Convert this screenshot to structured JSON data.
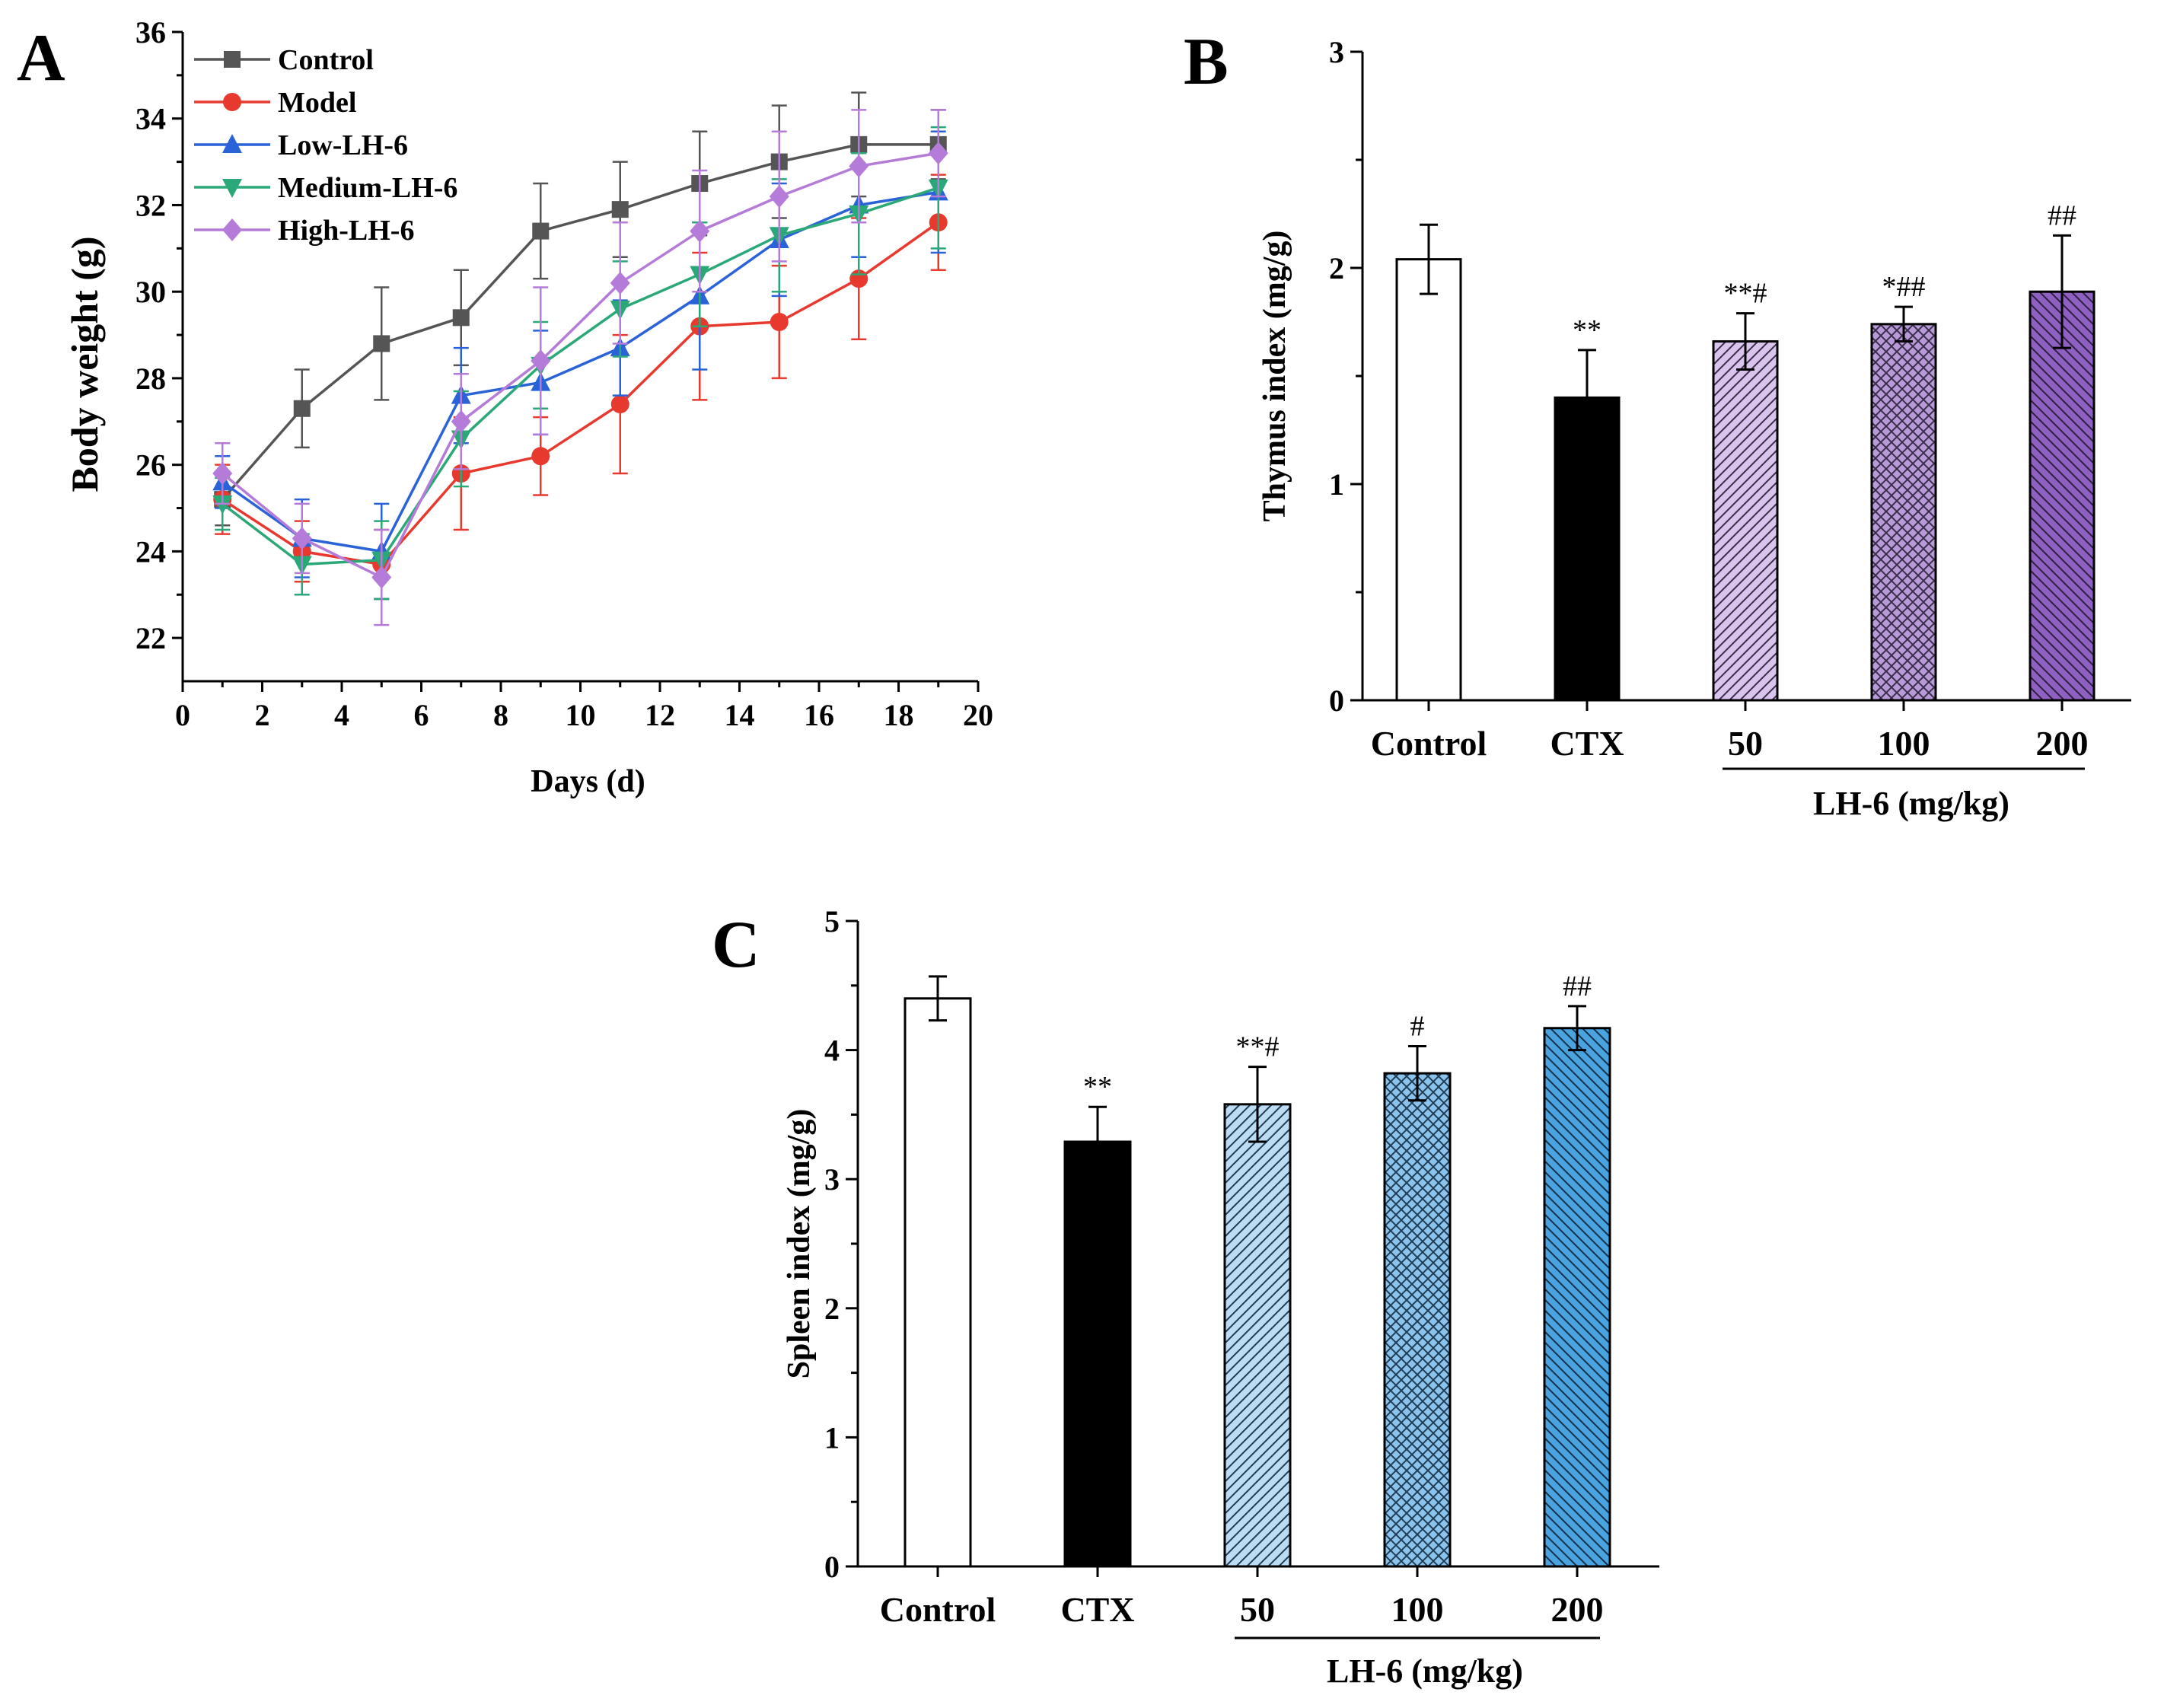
{
  "chart_data": [
    {
      "panel": "A",
      "type": "line",
      "xlabel": "Days (d)",
      "ylabel": "Body weight (g)",
      "xlim": [
        0,
        20
      ],
      "ylim": [
        21,
        36
      ],
      "xticks": [
        "0",
        "2",
        "4",
        "6",
        "8",
        "10",
        "12",
        "14",
        "16",
        "18",
        "20"
      ],
      "yticks": [
        "22",
        "24",
        "26",
        "28",
        "30",
        "32",
        "34",
        "36"
      ],
      "legend_position": "top-left",
      "x": [
        1,
        3,
        5,
        7,
        9,
        11,
        13,
        15,
        17,
        19
      ],
      "series": [
        {
          "name": "Control",
          "color": "#555555",
          "marker": "square",
          "values": [
            25.2,
            27.3,
            28.8,
            29.4,
            31.4,
            31.9,
            32.5,
            33.0,
            33.4,
            33.4
          ],
          "errors": [
            0.6,
            0.9,
            1.3,
            1.1,
            1.1,
            1.1,
            1.2,
            1.3,
            1.2,
            0.8
          ]
        },
        {
          "name": "Model",
          "color": "#e8392f",
          "marker": "circle",
          "values": [
            25.2,
            24.0,
            23.7,
            25.8,
            26.2,
            27.4,
            29.2,
            29.3,
            30.3,
            31.6
          ],
          "errors": [
            0.8,
            0.7,
            0.8,
            1.3,
            0.9,
            1.6,
            1.7,
            1.3,
            1.4,
            1.1
          ]
        },
        {
          "name": "Low-LH-6",
          "color": "#2a62d8",
          "marker": "triangle-up",
          "values": [
            25.6,
            24.3,
            24.0,
            27.6,
            27.9,
            28.7,
            29.9,
            31.2,
            32.0,
            32.3
          ],
          "errors": [
            0.6,
            0.9,
            1.1,
            1.1,
            1.2,
            1.1,
            1.7,
            1.3,
            1.2,
            1.4
          ]
        },
        {
          "name": "Medium-LH-6",
          "color": "#2aa877",
          "marker": "triangle-down",
          "values": [
            25.1,
            23.7,
            23.8,
            26.6,
            28.3,
            29.6,
            30.4,
            31.3,
            31.8,
            32.4
          ],
          "errors": [
            0.6,
            0.7,
            0.9,
            1.1,
            1.0,
            1.1,
            1.2,
            1.3,
            1.4,
            1.4
          ]
        },
        {
          "name": "High-LH-6",
          "color": "#b57bd8",
          "marker": "diamond",
          "values": [
            25.8,
            24.3,
            23.4,
            27.0,
            28.4,
            30.2,
            31.4,
            32.2,
            32.9,
            33.2
          ],
          "errors": [
            0.7,
            0.8,
            1.1,
            1.1,
            1.7,
            1.4,
            1.4,
            1.5,
            1.3,
            1.0
          ]
        }
      ]
    },
    {
      "panel": "B",
      "type": "bar",
      "ylabel": "Thymus index (mg/g)",
      "ylim": [
        0,
        3
      ],
      "yticks": [
        "0",
        "1",
        "2",
        "3"
      ],
      "categories": [
        "Control",
        "CTX",
        "50",
        "100",
        "200"
      ],
      "group_label": "LH-6 (mg/kg)",
      "values": [
        2.04,
        1.4,
        1.66,
        1.74,
        1.89
      ],
      "errors": [
        0.16,
        0.22,
        0.13,
        0.08,
        0.26
      ],
      "annotations": [
        "",
        "**",
        "**#",
        "*##",
        "##"
      ],
      "fills": [
        "#ffffff",
        "#000000",
        "#d8c4ec",
        "#b89ad8",
        "#8e60c2"
      ],
      "patterns": [
        "none",
        "none",
        "diagonal",
        "crosshatch",
        "backslash"
      ]
    },
    {
      "panel": "C",
      "type": "bar",
      "ylabel": "Spleen index (mg/g)",
      "ylim": [
        0,
        5
      ],
      "yticks": [
        "0",
        "1",
        "2",
        "3",
        "4",
        "5"
      ],
      "categories": [
        "Control",
        "CTX",
        "50",
        "100",
        "200"
      ],
      "group_label": "LH-6 (mg/kg)",
      "values": [
        4.4,
        3.29,
        3.58,
        3.82,
        4.17
      ],
      "errors": [
        0.17,
        0.27,
        0.29,
        0.21,
        0.17
      ],
      "annotations": [
        "",
        "**",
        "**#",
        "#",
        "##"
      ],
      "fills": [
        "#ffffff",
        "#000000",
        "#bcdcf4",
        "#8cc3ec",
        "#4aa3df"
      ],
      "patterns": [
        "none",
        "none",
        "diagonal",
        "crosshatch",
        "backslash"
      ]
    }
  ]
}
